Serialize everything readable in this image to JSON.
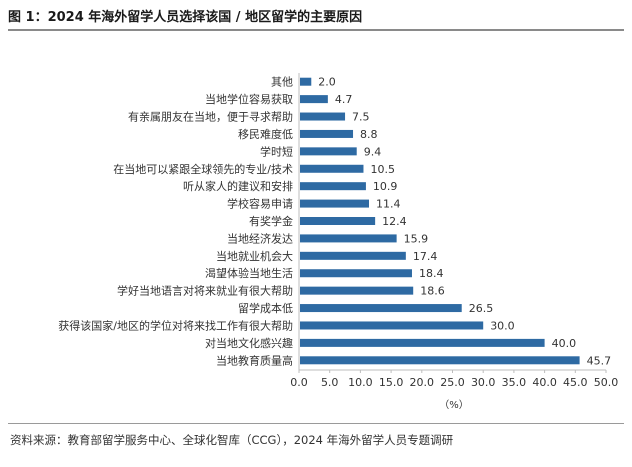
{
  "header": {
    "title": "图 1：2024 年海外留学人员选择该国 / 地区留学的主要原因"
  },
  "footer": {
    "source": "资料来源：教育部留学服务中心、全球化智库（CCG），2024 年海外留学人员专题调研"
  },
  "colors": {
    "bar": "#2e6aa3",
    "axis": "#bdbdbd",
    "label": "#333333"
  },
  "chart_data": {
    "type": "bar",
    "orientation": "horizontal",
    "categories": [
      "其他",
      "当地学位容易获取",
      "有亲属朋友在当地，便于寻求帮助",
      "移民难度低",
      "学时短",
      "在当地可以紧跟全球领先的专业/技术",
      "听从家人的建议和安排",
      "学校容易申请",
      "有奖学金",
      "当地经济发达",
      "当地就业机会大",
      "渴望体验当地生活",
      "学好当地语言对将来就业有很大帮助",
      "留学成本低",
      "获得该国家/地区的学位对将来找工作有很大帮助",
      "对当地文化感兴趣",
      "当地教育质量高"
    ],
    "values": [
      2.0,
      4.7,
      7.5,
      8.8,
      9.4,
      10.5,
      10.9,
      11.4,
      12.4,
      15.9,
      17.4,
      18.4,
      18.6,
      26.5,
      30.0,
      40.0,
      45.7
    ],
    "value_labels": [
      "2.0",
      "4.7",
      "7.5",
      "8.8",
      "9.4",
      "10.5",
      "10.9",
      "11.4",
      "12.4",
      "15.9",
      "17.4",
      "18.4",
      "18.6",
      "26.5",
      "30.0",
      "40.0",
      "45.7"
    ],
    "xticks": [
      "0.0",
      "5.0",
      "10.0",
      "15.0",
      "20.0",
      "25.0",
      "30.0",
      "35.0",
      "40.0",
      "45.0",
      "50.0"
    ],
    "xlabel": "（%）",
    "xlim": [
      0,
      50
    ],
    "grid": false,
    "legend": false
  }
}
